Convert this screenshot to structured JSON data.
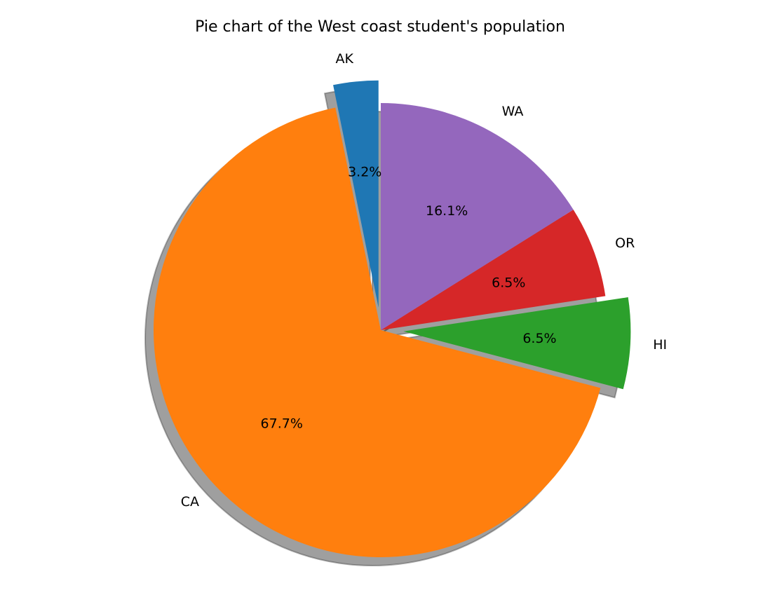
{
  "chart_data": {
    "type": "pie",
    "title": "Pie chart of the West coast student's population",
    "slices": [
      {
        "label": "AK",
        "value": 3.2,
        "pct_label": "3.2%",
        "color": "#1f77b4",
        "exploded": true
      },
      {
        "label": "CA",
        "value": 67.7,
        "pct_label": "67.7%",
        "color": "#ff7f0e",
        "exploded": false
      },
      {
        "label": "HI",
        "value": 6.5,
        "pct_label": "6.5%",
        "color": "#2ca02c",
        "exploded": true
      },
      {
        "label": "OR",
        "value": 6.5,
        "pct_label": "6.5%",
        "color": "#d62728",
        "exploded": false
      },
      {
        "label": "WA",
        "value": 16.1,
        "pct_label": "16.1%",
        "color": "#9467bd",
        "exploded": false
      }
    ],
    "start_angle": 90,
    "direction": "counterclockwise",
    "shadow": true
  }
}
